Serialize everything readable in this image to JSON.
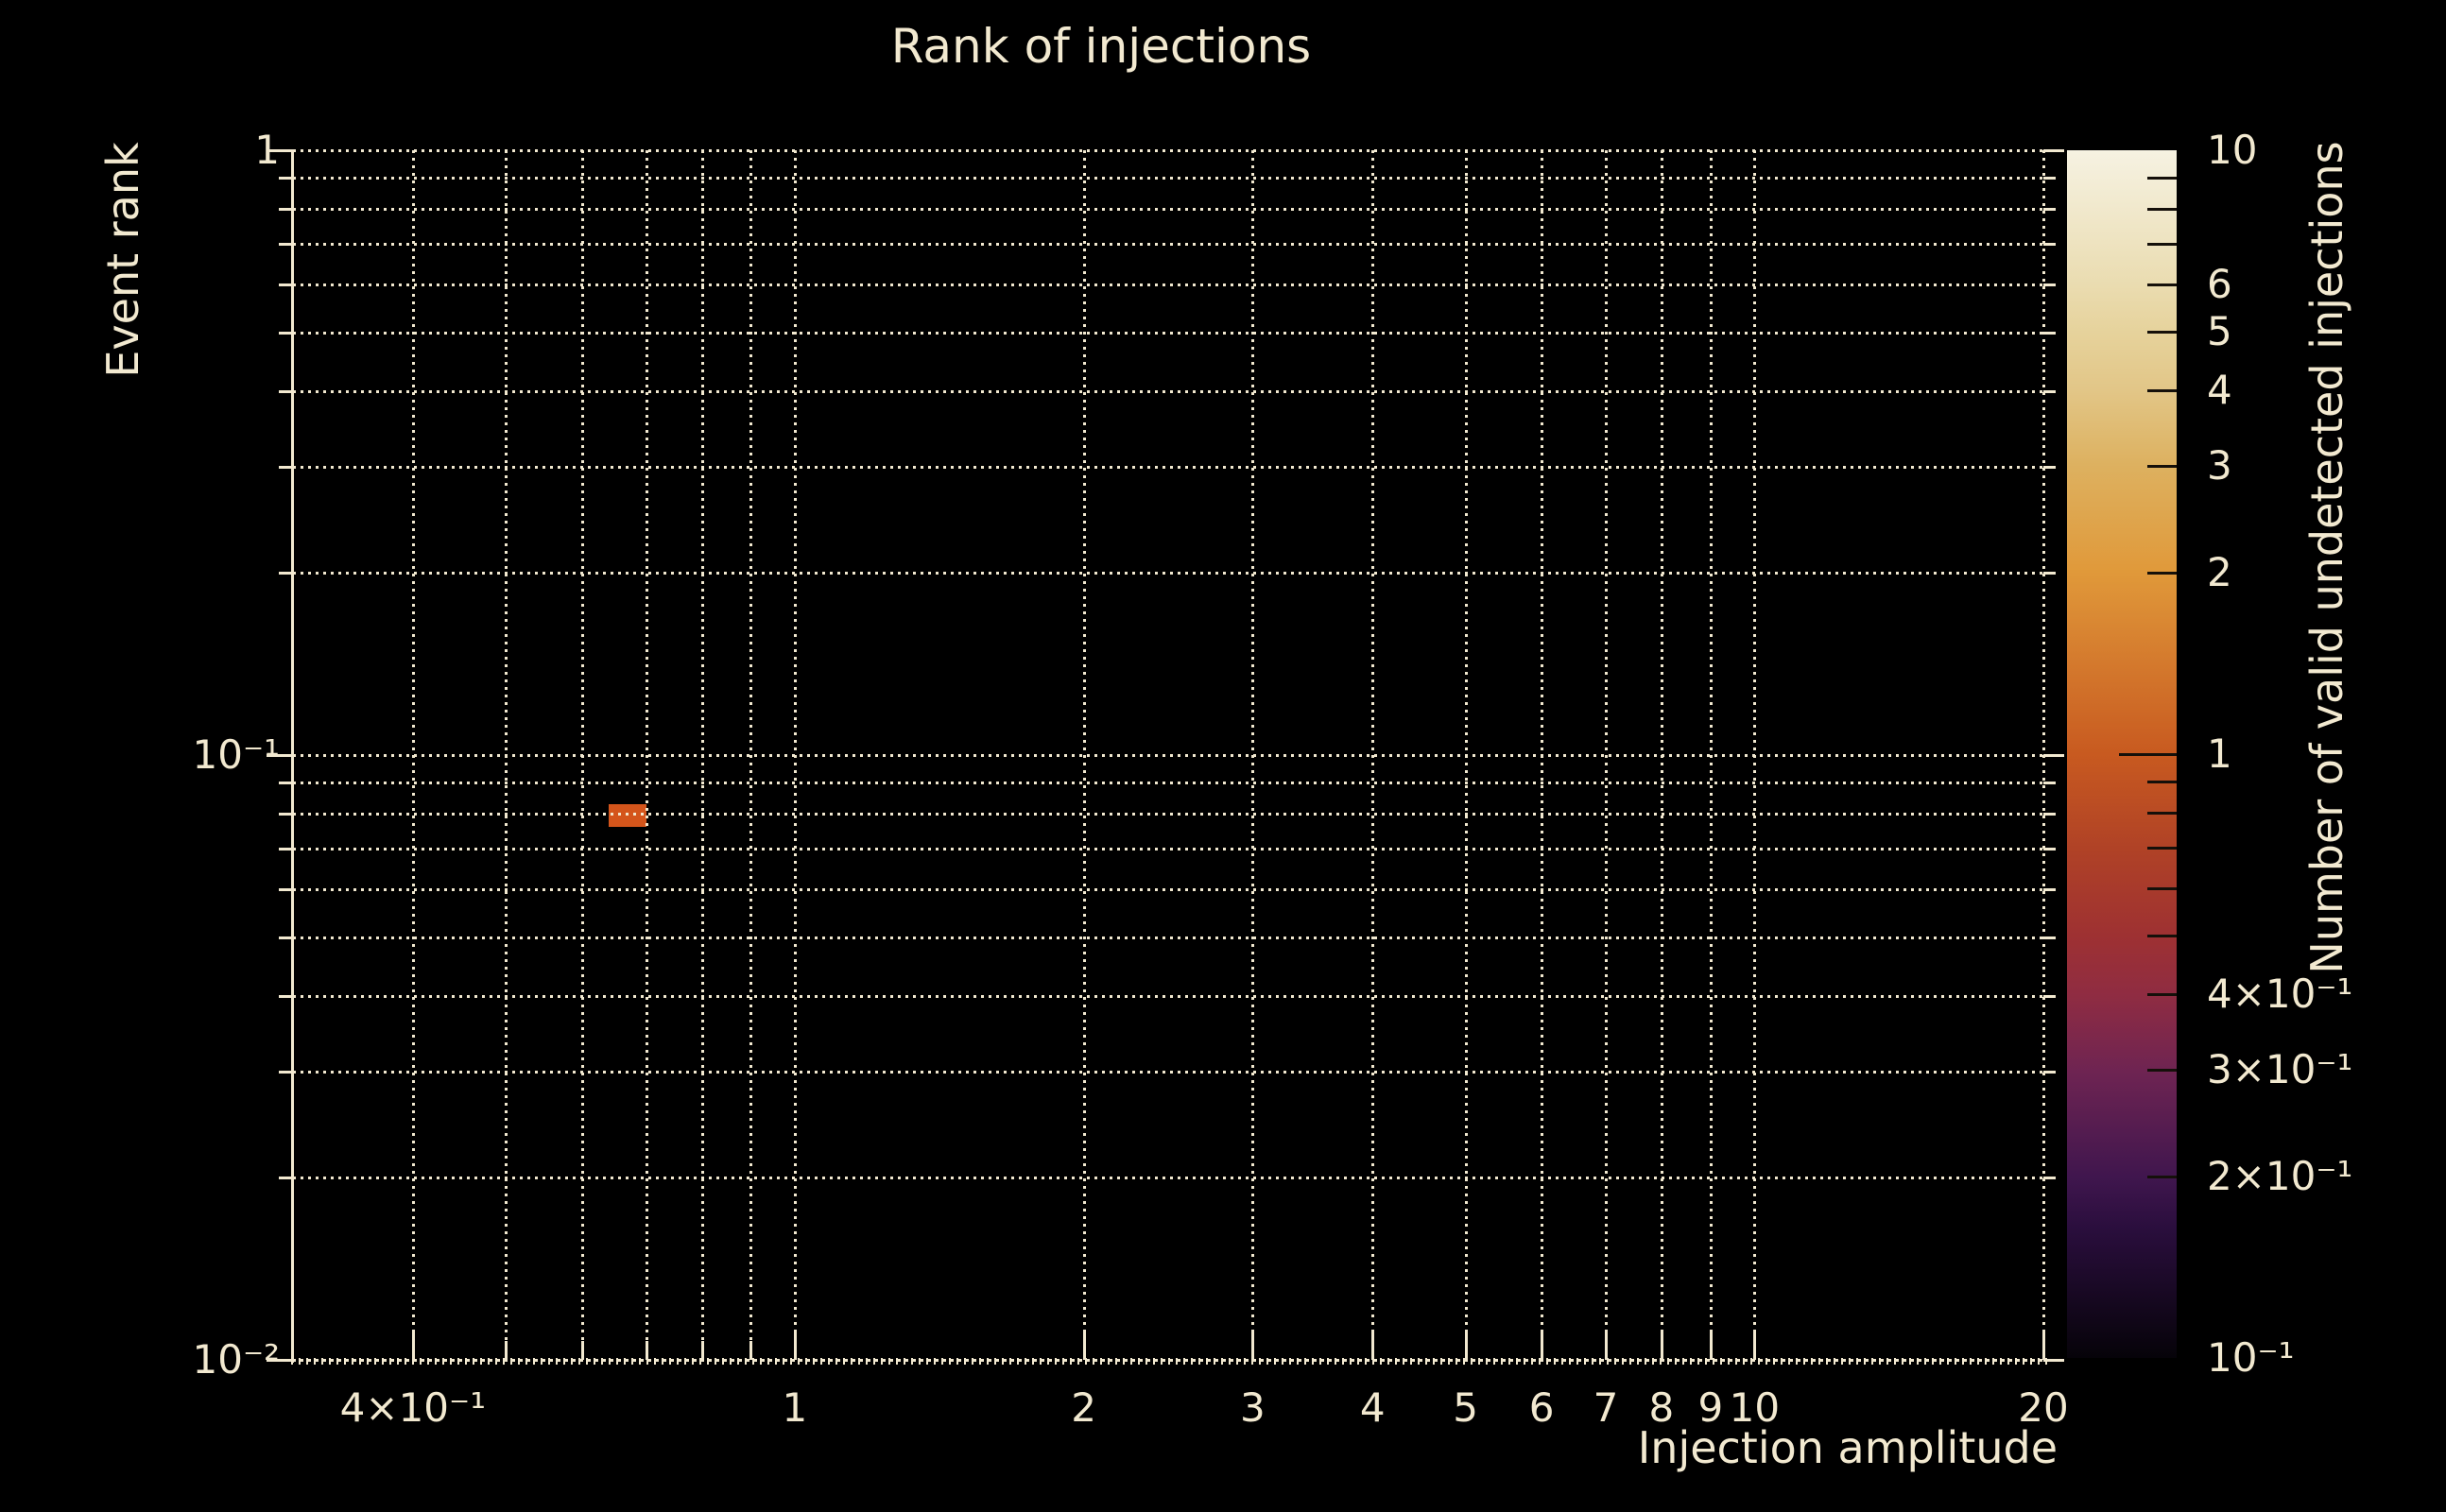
{
  "colors": {
    "background": "#000000",
    "text": "#f2e9d0",
    "grid": "#f2e9d0",
    "colorbar_tick": "#15100a",
    "cell_value_1": "#d4551b"
  },
  "chart_data": {
    "type": "heatmap",
    "title": "Rank of injections",
    "xlabel": "Injection amplitude",
    "ylabel": "Event rank",
    "colorbar_label": "Number of valid undetected injections",
    "grid": "on",
    "grid_style": "dotted",
    "x_axis": {
      "scale": "log",
      "min": 0.3,
      "max": 20,
      "labeled_ticks": [
        {
          "value": 0.4,
          "label": "4×10⁻¹"
        },
        {
          "value": 1,
          "label": "1"
        },
        {
          "value": 2,
          "label": "2"
        },
        {
          "value": 3,
          "label": "3"
        },
        {
          "value": 4,
          "label": "4"
        },
        {
          "value": 5,
          "label": "5"
        },
        {
          "value": 6,
          "label": "6"
        },
        {
          "value": 7,
          "label": "7"
        },
        {
          "value": 8,
          "label": "8"
        },
        {
          "value": 9,
          "label": "9"
        },
        {
          "value": 10,
          "label": "10"
        },
        {
          "value": 20,
          "label": "20"
        }
      ],
      "minor_ticks": [
        0.5,
        0.6,
        0.7,
        0.8,
        0.9
      ]
    },
    "y_axis": {
      "scale": "log",
      "min": 0.01,
      "max": 1,
      "labeled_ticks": [
        {
          "value": 1,
          "label": "1"
        },
        {
          "value": 0.1,
          "label": "10⁻¹"
        },
        {
          "value": 0.01,
          "label": "10⁻²"
        }
      ],
      "minor_ticks": [
        0.9,
        0.8,
        0.7,
        0.6,
        0.5,
        0.4,
        0.3,
        0.2,
        0.09,
        0.08,
        0.07,
        0.06,
        0.05,
        0.04,
        0.03,
        0.02
      ]
    },
    "colorbar": {
      "scale": "log",
      "min": 0.1,
      "max": 10,
      "labeled_ticks": [
        {
          "value": 10,
          "label": "10"
        },
        {
          "value": 6,
          "label": "6"
        },
        {
          "value": 5,
          "label": "5"
        },
        {
          "value": 4,
          "label": "4"
        },
        {
          "value": 3,
          "label": "3"
        },
        {
          "value": 2,
          "label": "2"
        },
        {
          "value": 1,
          "label": "1"
        },
        {
          "value": 0.4,
          "label": "4×10⁻¹"
        },
        {
          "value": 0.3,
          "label": "3×10⁻¹"
        },
        {
          "value": 0.2,
          "label": "2×10⁻¹"
        },
        {
          "value": 0.1,
          "label": "10⁻¹"
        }
      ],
      "minor_ticks": [
        9,
        8,
        7,
        0.9,
        0.8,
        0.7,
        0.6,
        0.5
      ],
      "long_ticks": [
        1
      ],
      "gradient": [
        {
          "pos": 0.0,
          "color": "#060309"
        },
        {
          "pos": 0.107,
          "color": "#2a0e3d"
        },
        {
          "pos": 0.15,
          "color": "#40164e"
        },
        {
          "pos": 0.237,
          "color": "#6e2452"
        },
        {
          "pos": 0.3,
          "color": "#8f2c42"
        },
        {
          "pos": 0.35,
          "color": "#9e3132"
        },
        {
          "pos": 0.422,
          "color": "#b04226"
        },
        {
          "pos": 0.5,
          "color": "#c85a20"
        },
        {
          "pos": 0.651,
          "color": "#e0993a"
        },
        {
          "pos": 0.74,
          "color": "#ddb160"
        },
        {
          "pos": 0.801,
          "color": "#e2c687"
        },
        {
          "pos": 0.848,
          "color": "#e6d29b"
        },
        {
          "pos": 0.888,
          "color": "#eadcb0"
        },
        {
          "pos": 1.0,
          "color": "#f6f2e2"
        }
      ]
    },
    "cells": [
      {
        "x_min": 0.64,
        "x_max": 0.7,
        "y_min": 0.076,
        "y_max": 0.083,
        "value": 1,
        "color": "#d4551b"
      }
    ]
  }
}
